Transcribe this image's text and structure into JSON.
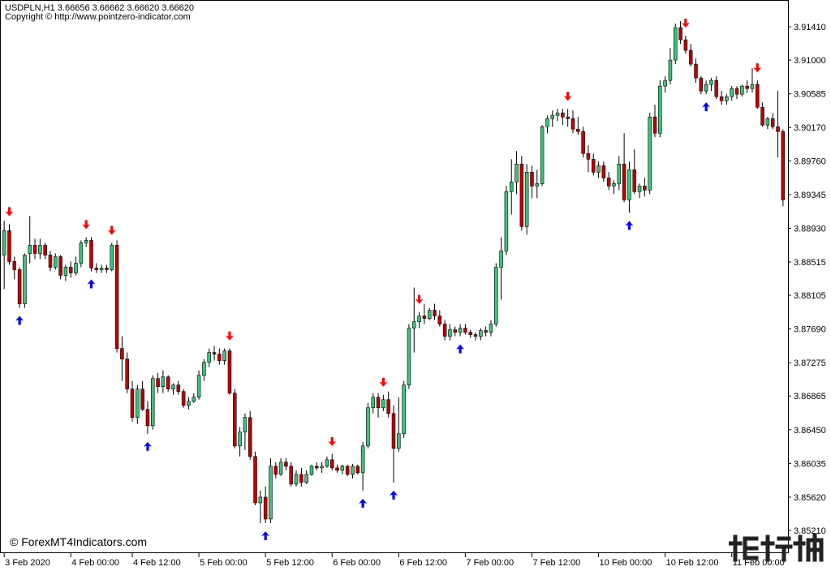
{
  "header": {
    "symbol_line": "USDPLN,H1  3.66656 3.66662 3.66620 3.66620",
    "copyright_line": "Copyright © http://www.pointzero-indicator.com"
  },
  "watermark": "© ForexMT4Indicators.com",
  "colors": {
    "bull": "#3cc47c",
    "bear": "#c00000",
    "up_arrow": "#0000ff",
    "down_arrow": "#ff0000",
    "frame": "#000000"
  },
  "chart_data": {
    "type": "candlestick",
    "title": "",
    "xlabel": "",
    "ylabel": "",
    "ylim": [
      3.8497,
      3.917
    ],
    "y_ticks": [
      "3.91410",
      "3.91000",
      "3.90585",
      "3.90170",
      "3.89760",
      "3.89345",
      "3.88930",
      "3.88515",
      "3.88105",
      "3.87690",
      "3.87275",
      "3.86865",
      "3.86450",
      "3.86035",
      "3.85620",
      "3.85210"
    ],
    "x_ticks": [
      "3 Feb 2020",
      "4 Feb 00:00",
      "4 Feb 12:00",
      "5 Feb 00:00",
      "5 Feb 12:00",
      "6 Feb 00:00",
      "6 Feb 12:00",
      "7 Feb 00:00",
      "7 Feb 12:00",
      "10 Feb 00:00",
      "10 Feb 12:00",
      "11 Feb 00:00"
    ],
    "x_tick_index": [
      0,
      13,
      25,
      38,
      51,
      64,
      77,
      90,
      103,
      116,
      129,
      142
    ],
    "candles_ohlc": [
      [
        3.886,
        3.8902,
        3.8818,
        3.889
      ],
      [
        3.889,
        3.8898,
        3.8848,
        3.8852
      ],
      [
        3.8852,
        3.8858,
        3.883,
        3.8842
      ],
      [
        3.8842,
        3.8845,
        3.8795,
        3.88
      ],
      [
        3.88,
        3.8862,
        3.8795,
        3.886
      ],
      [
        3.8862,
        3.8908,
        3.885,
        3.8872
      ],
      [
        3.8872,
        3.888,
        3.8855,
        3.8862
      ],
      [
        3.8862,
        3.888,
        3.8855,
        3.8872
      ],
      [
        3.8872,
        3.8875,
        3.8855,
        3.886
      ],
      [
        3.886,
        3.8865,
        3.884,
        3.8845
      ],
      [
        3.8845,
        3.8862,
        3.8842,
        3.8858
      ],
      [
        3.8858,
        3.886,
        3.883,
        3.8835
      ],
      [
        3.8835,
        3.8848,
        3.8828,
        3.8845
      ],
      [
        3.8845,
        3.8852,
        3.8832,
        3.8838
      ],
      [
        3.8838,
        3.8858,
        3.8835,
        3.885
      ],
      [
        3.885,
        3.8878,
        3.8845,
        3.8875
      ],
      [
        3.8875,
        3.8882,
        3.887,
        3.8878
      ],
      [
        3.8878,
        3.8882,
        3.884,
        3.8844
      ],
      [
        3.8844,
        3.885,
        3.8838,
        3.8842
      ],
      [
        3.8842,
        3.8848,
        3.8838,
        3.8844
      ],
      [
        3.8844,
        3.8848,
        3.8838,
        3.8842
      ],
      [
        3.8842,
        3.8875,
        3.884,
        3.8872
      ],
      [
        3.8872,
        3.8878,
        3.874,
        3.8745
      ],
      [
        3.8745,
        3.876,
        3.8705,
        3.8732
      ],
      [
        3.8732,
        3.874,
        3.869,
        3.8695
      ],
      [
        3.8695,
        3.8705,
        3.8655,
        3.866
      ],
      [
        3.866,
        3.87,
        3.8652,
        3.8695
      ],
      [
        3.8695,
        3.8705,
        3.8668,
        3.867
      ],
      [
        3.867,
        3.868,
        3.864,
        3.865
      ],
      [
        3.865,
        3.8712,
        3.8645,
        3.8708
      ],
      [
        3.8708,
        3.8715,
        3.869,
        3.8698
      ],
      [
        3.8698,
        3.8718,
        3.869,
        3.871
      ],
      [
        3.871,
        3.8712,
        3.8692,
        3.8695
      ],
      [
        3.8695,
        3.8702,
        3.8688,
        3.87
      ],
      [
        3.87,
        3.8705,
        3.8688,
        3.8692
      ],
      [
        3.8692,
        3.8695,
        3.8672,
        3.8675
      ],
      [
        3.8675,
        3.8685,
        3.867,
        3.868
      ],
      [
        3.868,
        3.869,
        3.8678,
        3.8685
      ],
      [
        3.8685,
        3.8718,
        3.8682,
        3.8712
      ],
      [
        3.8712,
        3.8732,
        3.8705,
        3.8728
      ],
      [
        3.8728,
        3.8745,
        3.8722,
        3.874
      ],
      [
        3.874,
        3.8748,
        3.873,
        3.8738
      ],
      [
        3.8738,
        3.8745,
        3.8725,
        3.873
      ],
      [
        3.873,
        3.8745,
        3.8725,
        3.8742
      ],
      [
        3.8742,
        3.8745,
        3.8688,
        3.869
      ],
      [
        3.869,
        3.8695,
        3.8622,
        3.8625
      ],
      [
        3.8625,
        3.8648,
        3.8612,
        3.8642
      ],
      [
        3.8642,
        3.8665,
        3.862,
        3.866
      ],
      [
        3.866,
        3.8668,
        3.8608,
        3.8612
      ],
      [
        3.8612,
        3.8618,
        3.8552,
        3.8555
      ],
      [
        3.8555,
        3.857,
        3.853,
        3.8562
      ],
      [
        3.8562,
        3.8575,
        3.853,
        3.8535
      ],
      [
        3.8535,
        3.861,
        3.853,
        3.86
      ],
      [
        3.86,
        3.8605,
        3.8585,
        3.859
      ],
      [
        3.859,
        3.861,
        3.8588,
        3.8605
      ],
      [
        3.8605,
        3.861,
        3.8595,
        3.86
      ],
      [
        3.86,
        3.8605,
        3.8575,
        3.8578
      ],
      [
        3.8578,
        3.8595,
        3.8575,
        3.859
      ],
      [
        3.859,
        3.8598,
        3.8575,
        3.858
      ],
      [
        3.858,
        3.8595,
        3.8578,
        3.859
      ],
      [
        3.859,
        3.8602,
        3.8588,
        3.86
      ],
      [
        3.86,
        3.8605,
        3.8595,
        3.8598
      ],
      [
        3.8598,
        3.8605,
        3.8592,
        3.86
      ],
      [
        3.86,
        3.8612,
        3.8598,
        3.8608
      ],
      [
        3.8608,
        3.8615,
        3.8595,
        3.8598
      ],
      [
        3.8598,
        3.8602,
        3.8592,
        3.8595
      ],
      [
        3.8595,
        3.8602,
        3.859,
        3.86
      ],
      [
        3.86,
        3.8602,
        3.8588,
        3.859
      ],
      [
        3.859,
        3.8603,
        3.8585,
        3.86
      ],
      [
        3.86,
        3.8602,
        3.859,
        3.8592
      ],
      [
        3.8592,
        3.863,
        3.857,
        3.8625
      ],
      [
        3.8625,
        3.8678,
        3.8622,
        3.8672
      ],
      [
        3.8672,
        3.869,
        3.8665,
        3.8685
      ],
      [
        3.8685,
        3.869,
        3.866,
        3.8672
      ],
      [
        3.8672,
        3.8688,
        3.8668,
        3.8682
      ],
      [
        3.8682,
        3.8692,
        3.866,
        3.8665
      ],
      [
        3.8665,
        3.8675,
        3.858,
        3.8622
      ],
      [
        3.8622,
        3.8685,
        3.8618,
        3.864
      ],
      [
        3.864,
        3.8705,
        3.8635,
        3.87
      ],
      [
        3.87,
        3.8775,
        3.8695,
        3.877
      ],
      [
        3.877,
        3.882,
        3.874,
        3.8778
      ],
      [
        3.8778,
        3.879,
        3.877,
        3.8785
      ],
      [
        3.8785,
        3.88,
        3.8775,
        3.8782
      ],
      [
        3.8782,
        3.8795,
        3.878,
        3.8792
      ],
      [
        3.8792,
        3.88,
        3.878,
        3.8785
      ],
      [
        3.8785,
        3.8792,
        3.8772,
        3.8775
      ],
      [
        3.8775,
        3.878,
        3.8755,
        3.876
      ],
      [
        3.876,
        3.8775,
        3.8755,
        3.8768
      ],
      [
        3.8768,
        3.8772,
        3.876,
        3.8765
      ],
      [
        3.8765,
        3.8775,
        3.876,
        3.877
      ],
      [
        3.877,
        3.8775,
        3.8762,
        3.8765
      ],
      [
        3.8765,
        3.8768,
        3.8758,
        3.8762
      ],
      [
        3.8762,
        3.8765,
        3.8755,
        3.876
      ],
      [
        3.876,
        3.877,
        3.8755,
        3.8767
      ],
      [
        3.8767,
        3.8772,
        3.876,
        3.8765
      ],
      [
        3.8765,
        3.878,
        3.876,
        3.8775
      ],
      [
        3.8775,
        3.885,
        3.8772,
        3.8845
      ],
      [
        3.8845,
        3.8882,
        3.8805,
        3.8865
      ],
      [
        3.8865,
        3.8945,
        3.886,
        3.8938
      ],
      [
        3.8938,
        3.8978,
        3.891,
        3.895
      ],
      [
        3.895,
        3.8988,
        3.8935,
        3.8972
      ],
      [
        3.8972,
        3.8982,
        3.889,
        3.8895
      ],
      [
        3.8895,
        3.8972,
        3.8885,
        3.8962
      ],
      [
        3.8962,
        3.897,
        3.893,
        3.8945
      ],
      [
        3.8945,
        3.8965,
        3.893,
        3.8948
      ],
      [
        3.8948,
        3.902,
        3.8945,
        3.9018
      ],
      [
        3.9018,
        3.9032,
        3.901,
        3.9028
      ],
      [
        3.9028,
        3.9038,
        3.9018,
        3.9032
      ],
      [
        3.9032,
        3.904,
        3.9025,
        3.9035
      ],
      [
        3.9035,
        3.904,
        3.902,
        3.903
      ],
      [
        3.903,
        3.904,
        3.9018,
        3.9028
      ],
      [
        3.9028,
        3.9038,
        3.901,
        3.9015
      ],
      [
        3.9015,
        3.903,
        3.9008,
        3.9012
      ],
      [
        3.9012,
        3.9018,
        3.898,
        3.8985
      ],
      [
        3.8985,
        3.8995,
        3.8962,
        3.8978
      ],
      [
        3.8978,
        3.8985,
        3.8958,
        3.8962
      ],
      [
        3.8962,
        3.8975,
        3.8955,
        3.897
      ],
      [
        3.897,
        3.8975,
        3.895,
        3.8955
      ],
      [
        3.8955,
        3.8962,
        3.894,
        3.8945
      ],
      [
        3.8945,
        3.8952,
        3.8935,
        3.8948
      ],
      [
        3.8948,
        3.8982,
        3.894,
        3.8972
      ],
      [
        3.8972,
        3.901,
        3.8925,
        3.8928
      ],
      [
        3.8928,
        3.8975,
        3.8912,
        3.8965
      ],
      [
        3.8965,
        3.899,
        3.8935,
        3.8938
      ],
      [
        3.8938,
        3.8948,
        3.893,
        3.8945
      ],
      [
        3.8945,
        3.8955,
        3.8932,
        3.894
      ],
      [
        3.894,
        3.9035,
        3.8935,
        3.903
      ],
      [
        3.903,
        3.9045,
        3.9005,
        3.901
      ],
      [
        3.901,
        3.9075,
        3.9005,
        3.9068
      ],
      [
        3.9068,
        3.908,
        3.906,
        3.9075
      ],
      [
        3.9075,
        3.9115,
        3.907,
        3.91
      ],
      [
        3.91,
        3.9145,
        3.9095,
        3.914
      ],
      [
        3.914,
        3.9148,
        3.912,
        3.9125
      ],
      [
        3.9125,
        3.913,
        3.9108,
        3.9112
      ],
      [
        3.9112,
        3.912,
        3.9092,
        3.9095
      ],
      [
        3.9095,
        3.9102,
        3.9072,
        3.9078
      ],
      [
        3.9078,
        3.908,
        3.9058,
        3.9062
      ],
      [
        3.9062,
        3.9075,
        3.9058,
        3.907
      ],
      [
        3.907,
        3.9078,
        3.9062,
        3.9075
      ],
      [
        3.9075,
        3.908,
        3.9052,
        3.9055
      ],
      [
        3.9055,
        3.9062,
        3.9045,
        3.905
      ],
      [
        3.905,
        3.9058,
        3.9045,
        3.9055
      ],
      [
        3.9055,
        3.9068,
        3.905,
        3.9065
      ],
      [
        3.9065,
        3.9068,
        3.9052,
        3.9058
      ],
      [
        3.9058,
        3.907,
        3.9055,
        3.9068
      ],
      [
        3.9068,
        3.9075,
        3.906,
        3.9065
      ],
      [
        3.9065,
        3.909,
        3.906,
        3.907
      ],
      [
        3.907,
        3.9075,
        3.904,
        3.9042
      ],
      [
        3.9042,
        3.9048,
        3.9018,
        3.902
      ],
      [
        3.902,
        3.903,
        3.9015,
        3.9028
      ],
      [
        3.9028,
        3.9035,
        3.9015,
        3.9018
      ],
      [
        3.9018,
        3.9062,
        3.898,
        3.9012
      ],
      [
        3.9012,
        3.9015,
        3.892,
        3.8928
      ]
    ],
    "up_arrow_index": [
      3,
      17,
      28,
      51,
      70,
      76,
      89,
      122,
      137
    ],
    "down_arrow_index": [
      1,
      16,
      21,
      44,
      64,
      74,
      81,
      110,
      133,
      147
    ]
  }
}
